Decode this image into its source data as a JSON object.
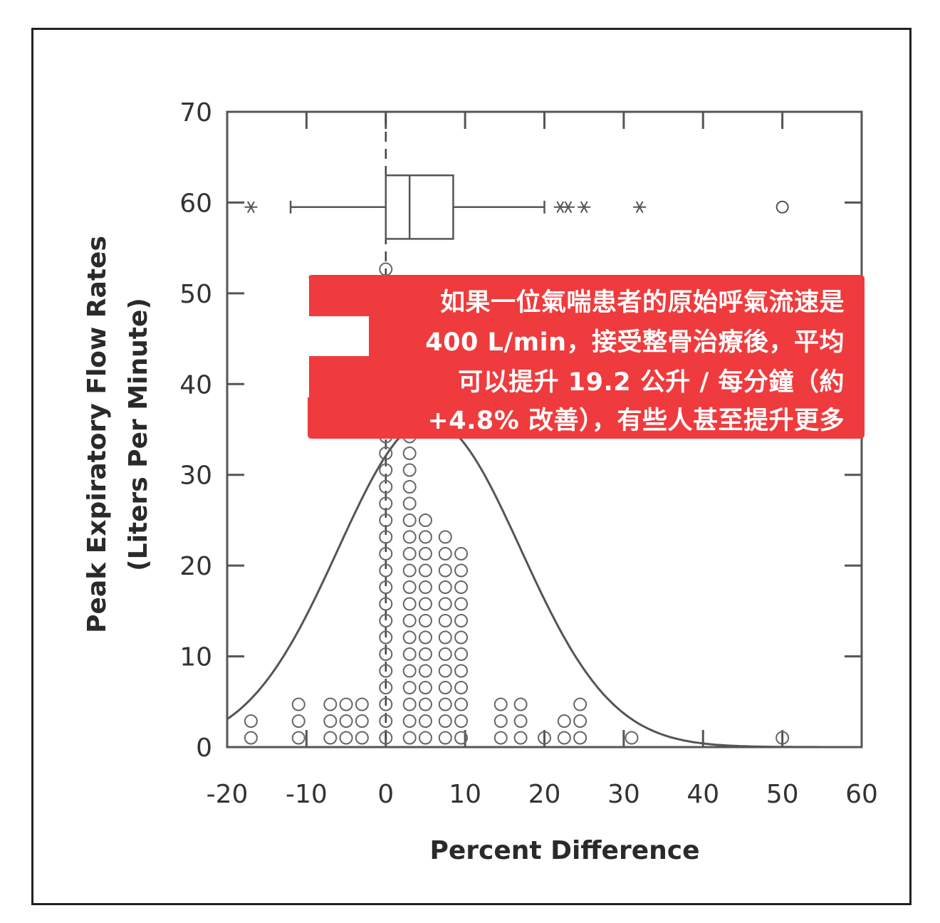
{
  "chart_data": {
    "type": "scatter",
    "xlabel": "Percent Difference",
    "ylabel_line1": "Peak Expiratory Flow Rates",
    "ylabel_line2": "(Liters Per Minute)",
    "xlim": [
      -20,
      60
    ],
    "ylim": [
      0,
      70
    ],
    "x_ticks": [
      "-20",
      "-10",
      "0",
      "10",
      "20",
      "30",
      "40",
      "50",
      "60"
    ],
    "y_ticks": [
      "0",
      "10",
      "20",
      "30",
      "40",
      "50",
      "60",
      "70"
    ],
    "reference_line_x": 0,
    "boxplot": {
      "y_center": 59.5,
      "y_bottom": 56,
      "y_top": 63,
      "whisker_low": -12,
      "q1": 0,
      "median": 3,
      "q3": 8.5,
      "whisker_high": 20,
      "outliers_star": [
        -17,
        22,
        23,
        25,
        32
      ],
      "outliers_circle": [
        50
      ]
    },
    "normal_curve": {
      "mean": 5.5,
      "sd": 11.5,
      "peak_y": 36
    },
    "dot_columns": [
      {
        "x": -17,
        "count": 2
      },
      {
        "x": -11,
        "count": 3
      },
      {
        "x": -7,
        "count": 3
      },
      {
        "x": -5,
        "count": 3
      },
      {
        "x": -3,
        "count": 3
      },
      {
        "x": 0,
        "count": 29
      },
      {
        "x": 3,
        "count": 23
      },
      {
        "x": 5,
        "count": 14
      },
      {
        "x": 7.5,
        "count": 13
      },
      {
        "x": 9.5,
        "count": 12
      },
      {
        "x": 14.5,
        "count": 3
      },
      {
        "x": 17,
        "count": 3
      },
      {
        "x": 20,
        "count": 1
      },
      {
        "x": 22.5,
        "count": 2
      },
      {
        "x": 24.5,
        "count": 3
      },
      {
        "x": 31,
        "count": 1
      },
      {
        "x": 50,
        "count": 1
      }
    ]
  },
  "callout": {
    "line1": "如果一位氣喘患者的原始呼氣流速是",
    "line2": "400 L/min，接受整骨治療後，平均",
    "line3": "可以提升 19.2 公升 / 每分鐘（約",
    "line4": "+4.8% 改善），有些人甚至提升更多"
  }
}
